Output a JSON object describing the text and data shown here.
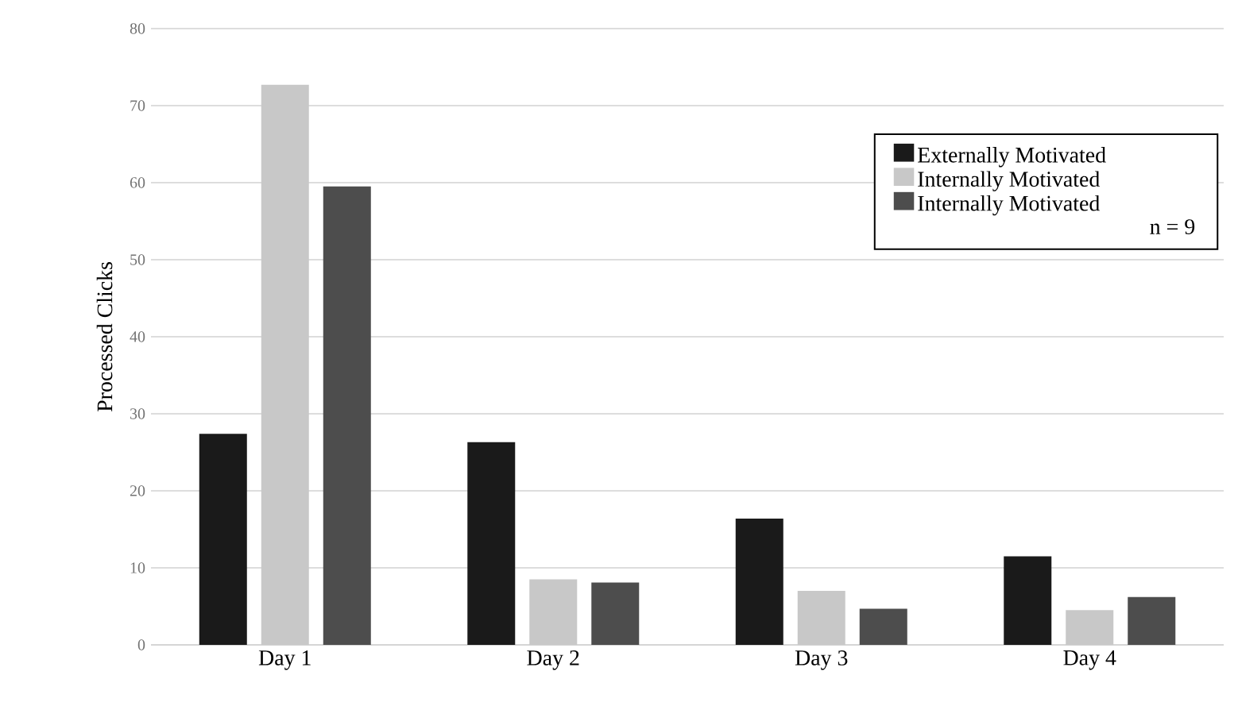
{
  "chart_data": {
    "type": "bar",
    "categories": [
      "Day 1",
      "Day 2",
      "Day 3",
      "Day 4"
    ],
    "ylabel": "Processed Clicks",
    "series": [
      {
        "name": "Externally Motivated",
        "color": "#1a1a1a",
        "values": [
          27.4,
          26.3,
          16.4,
          11.5
        ]
      },
      {
        "name": "Internally Motivated",
        "color": "#c8c8c8",
        "values": [
          72.7,
          8.5,
          7.0,
          4.5
        ]
      },
      {
        "name": "Internally Motivated",
        "color": "#4d4d4d",
        "values": [
          59.5,
          8.1,
          4.7,
          6.2
        ]
      }
    ],
    "ylim": [
      0,
      80
    ],
    "yticks": [
      0,
      10,
      20,
      30,
      40,
      50,
      60,
      70,
      80
    ],
    "grid": "y",
    "legend": "top right",
    "annotations": [
      "n = 9"
    ]
  }
}
